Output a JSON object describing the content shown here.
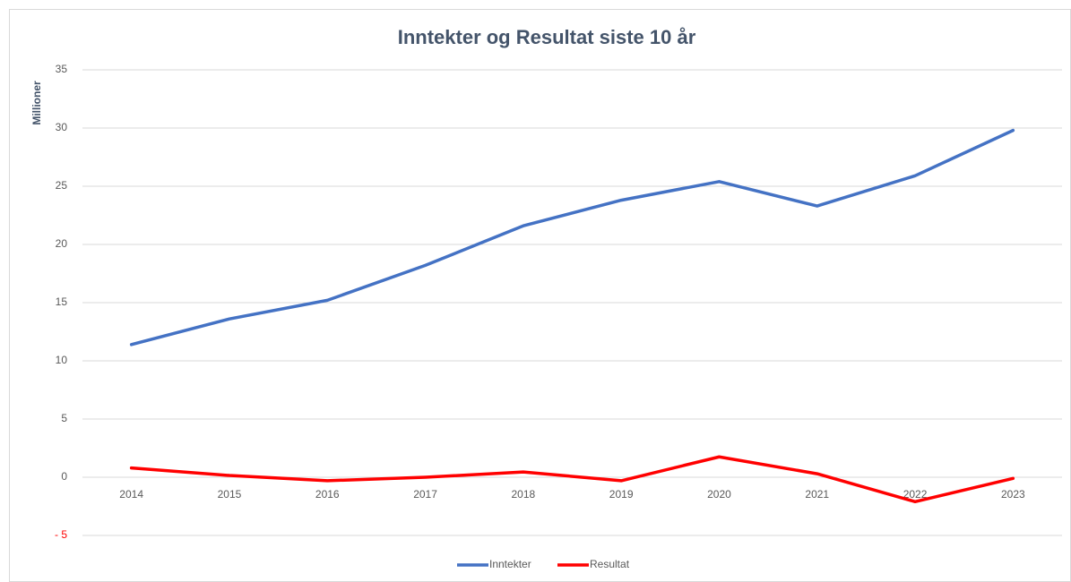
{
  "chart_data": {
    "type": "line",
    "title": "Inntekter og Resultat siste 10 år",
    "y_label": "Millioner",
    "categories": [
      "2014",
      "2015",
      "2016",
      "2017",
      "2018",
      "2019",
      "2020",
      "2021",
      "2022",
      "2023"
    ],
    "series": [
      {
        "name": "Inntekter",
        "color": "#4472c4",
        "values": [
          11.4,
          13.6,
          15.2,
          18.2,
          21.6,
          23.8,
          25.4,
          23.3,
          25.9,
          29.8
        ]
      },
      {
        "name": "Resultat",
        "color": "#ff0000",
        "values": [
          0.8,
          0.15,
          -0.3,
          0.0,
          0.45,
          -0.3,
          1.75,
          0.3,
          -2.1,
          -0.1
        ]
      }
    ],
    "ylim": [
      -5,
      35
    ],
    "yticks": [
      {
        "value": -5,
        "label": "- 5"
      },
      0,
      5,
      10,
      15,
      20,
      25,
      30,
      35
    ],
    "grid": true,
    "legend": "bottom"
  }
}
